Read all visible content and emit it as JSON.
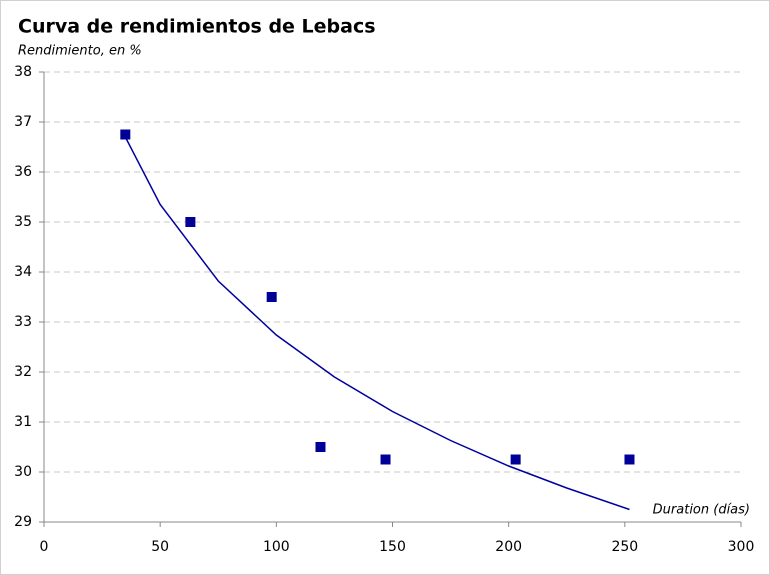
{
  "chart_data": {
    "type": "scatter",
    "title": "Curva de rendimientos de Lebacs",
    "subtitle": "Rendimiento, en %",
    "x_label": "Duration (días)",
    "xlim": [
      0,
      300
    ],
    "xticks": [
      0,
      50,
      100,
      150,
      200,
      250,
      300
    ],
    "ylim": [
      29,
      38
    ],
    "yticks": [
      29,
      30,
      31,
      32,
      33,
      34,
      35,
      36,
      37,
      38
    ],
    "grid": true,
    "series": [
      {
        "mode": "markers",
        "color": "#000099",
        "x": [
          35,
          63,
          98,
          119,
          147,
          203,
          252
        ],
        "values": [
          36.75,
          35,
          33.5,
          30.5,
          30.25,
          30.25,
          30.25
        ]
      },
      {
        "mode": "line",
        "color": "#0000a0",
        "x": [
          35,
          50,
          75,
          100,
          125,
          150,
          175,
          200,
          225,
          252
        ],
        "values": [
          36.7,
          35.35,
          33.82,
          32.74,
          31.9,
          31.21,
          30.63,
          30.12,
          29.68,
          29.25
        ]
      }
    ]
  }
}
